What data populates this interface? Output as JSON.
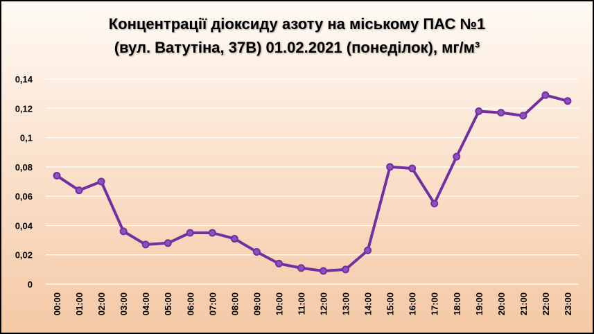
{
  "chart_data": {
    "type": "line",
    "title_line1": "Концентрації діоксиду азоту на міському ПАС №1",
    "title_line2": "(вул. Ватутіна, 37В) 01.02.2021 (понеділок), мг/м³",
    "categories": [
      "00:00",
      "01:00",
      "02:00",
      "03:00",
      "04:00",
      "05:00",
      "06:00",
      "07:00",
      "08:00",
      "09:00",
      "10:00",
      "11:00",
      "12:00",
      "13:00",
      "14:00",
      "15:00",
      "16:00",
      "17:00",
      "18:00",
      "19:00",
      "20:00",
      "21:00",
      "22:00",
      "23:00"
    ],
    "series": [
      {
        "values": [
          0.074,
          0.064,
          0.07,
          0.036,
          0.027,
          0.028,
          0.035,
          0.035,
          0.031,
          0.022,
          0.014,
          0.011,
          0.009,
          0.01,
          0.023,
          0.08,
          0.079,
          0.055,
          0.087,
          0.118,
          0.117,
          0.115,
          0.129,
          0.125
        ]
      }
    ],
    "yticks": [
      "0",
      "0,02",
      "0,04",
      "0,06",
      "0,08",
      "0,1",
      "0,12",
      "0,14"
    ],
    "ylim": [
      0,
      0.14
    ],
    "grid": true,
    "legend": "none",
    "colors": {
      "line": "#7030a0",
      "marker_fill": "#8e4fc0",
      "grid": "#ffffff"
    }
  }
}
